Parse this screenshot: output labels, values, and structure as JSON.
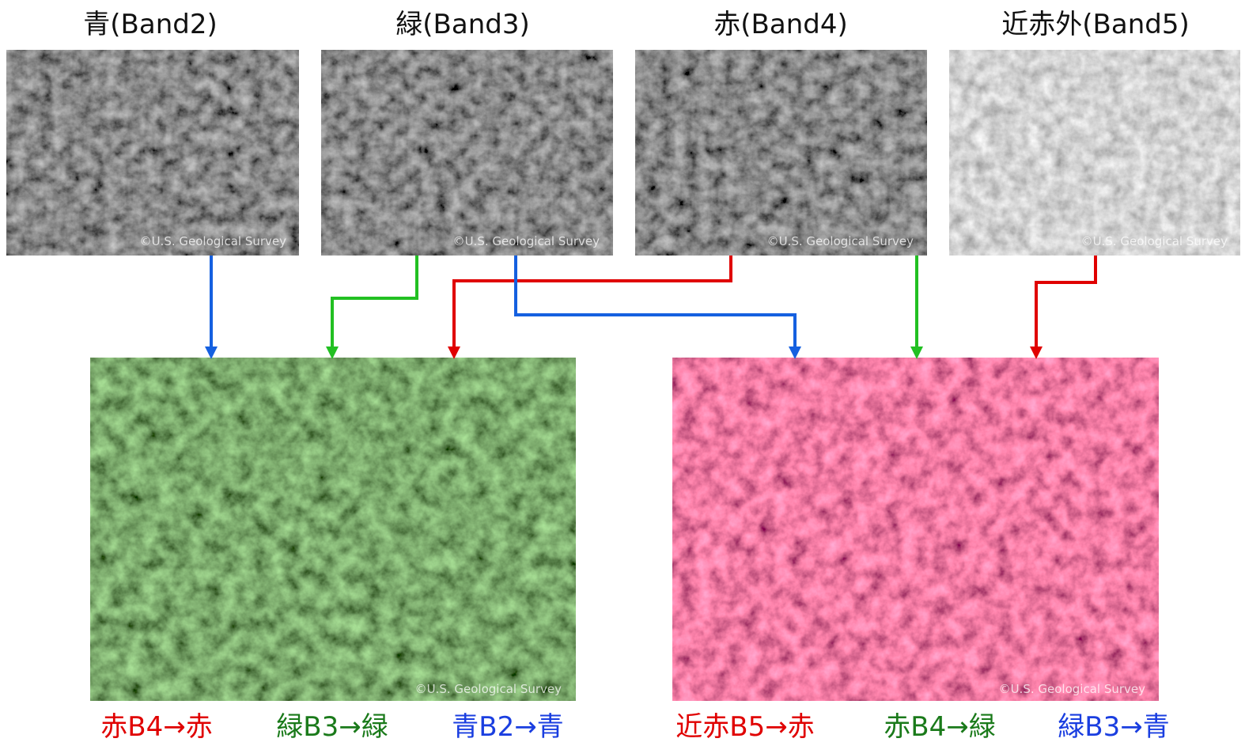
{
  "bands": [
    {
      "title": "青(Band2)",
      "credit": "©U.S. Geological Survey"
    },
    {
      "title": "緑(Band3)",
      "credit": "©U.S. Geological Survey"
    },
    {
      "title": "赤(Band4)",
      "credit": "©U.S. Geological Survey"
    },
    {
      "title": "近赤外(Band5)",
      "credit": "©U.S. Geological Survey"
    }
  ],
  "composites": [
    {
      "credit": "©U.S. Geological Survey",
      "labels": [
        "赤B4→赤",
        "緑B3→緑",
        "青B2→青"
      ]
    },
    {
      "credit": "©U.S. Geological Survey",
      "labels": [
        "近赤B5→赤",
        "赤B4→緑",
        "緑B3→青"
      ]
    }
  ]
}
